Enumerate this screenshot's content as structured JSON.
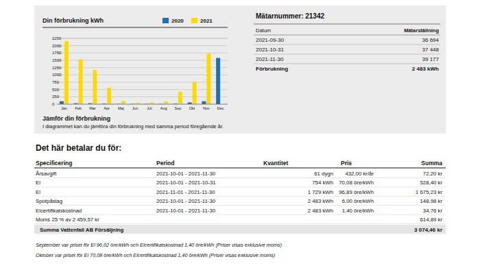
{
  "chart_data": {
    "type": "bar",
    "title": "Din förbrukning kWh",
    "categories": [
      "Jan",
      "Feb",
      "Mar",
      "Apr",
      "Maj",
      "Jun",
      "Jul",
      "Aug",
      "Sep",
      "Okt",
      "Nov",
      "Dec"
    ],
    "series": [
      {
        "name": "2020",
        "color": "#1f6fb4",
        "values": [
          100,
          30,
          30,
          20,
          10,
          10,
          10,
          10,
          20,
          60,
          100,
          1580
        ]
      },
      {
        "name": "2021",
        "color": "#ffda00",
        "values": [
          2150,
          1530,
          1170,
          560,
          100,
          50,
          60,
          90,
          420,
          754,
          1729,
          null
        ]
      }
    ],
    "ylim": [
      0,
      2250
    ],
    "yticks": [
      0,
      250,
      500,
      750,
      1000,
      1250,
      1500,
      1750,
      2000,
      2250
    ],
    "grid": true,
    "legend": "top"
  },
  "chart_note": {
    "title": "Jämför din förbrukning",
    "text": "I diagrammet kan du jämföra din förbrukning med samma period föregående år."
  },
  "meter": {
    "title": "Mätarnummer: 21342",
    "header": [
      "Datum",
      "Mätarställning"
    ],
    "rows": [
      [
        "2021-09-30",
        "36 694"
      ],
      [
        "2021-10-31",
        "37 448"
      ],
      [
        "2021-11-30",
        "39 177"
      ]
    ],
    "total": [
      "Förbrukning",
      "2 483 kWh"
    ]
  },
  "bill": {
    "title": "Det här betalar du för:",
    "header": {
      "spec": "Specificering",
      "period": "Period",
      "quantity": "Kvantitet",
      "price": "Pris",
      "sum": "Summa"
    },
    "rows": [
      {
        "spec": "Årsavgift",
        "period": "2021-10-01 - 2021-11-30",
        "quantity": "61 dygn",
        "price": "432,00 kr/år",
        "sum": "72,20 kr"
      },
      {
        "spec": "El",
        "period": "2021-10-01 - 2021-10-31",
        "quantity": "754 kWh",
        "price": "70,08 öre/kWh",
        "sum": "528,40 kr"
      },
      {
        "spec": "El",
        "period": "2021-11-01 - 2021-11-30",
        "quantity": "1 729 kWh",
        "price": "96,89 öre/kWh",
        "sum": "1 675,23 kr"
      },
      {
        "spec": "Spotpåslag",
        "period": "2021-10-01 - 2021-11-30",
        "quantity": "2 483 kWh",
        "price": "6,00 öre/kWh",
        "sum": "148,98 kr"
      },
      {
        "spec": "Elcertifikatskostnad",
        "period": "2021-10-01 - 2021-11-30",
        "quantity": "2 483 kWh",
        "price": "1,40 öre/kWh",
        "sum": "34,76 kr"
      },
      {
        "spec": "Moms 25 % av 2 459,57 kr",
        "sum": "614,89 kr"
      }
    ],
    "total": {
      "label": "Summa Vattenfall AB Försäljning",
      "sum": "3 074,46 kr"
    },
    "notes": [
      "September var priset för El 96,02 öre/kWh och Elcertifikatskostnad 1,40 öre/kWh (Priser visas exklusive moms)",
      "Oktober var priset för El 70,08 öre/kWh och Elcertifikatskostnad 1,40 öre/kWh (Priser visas exklusive moms)"
    ]
  }
}
